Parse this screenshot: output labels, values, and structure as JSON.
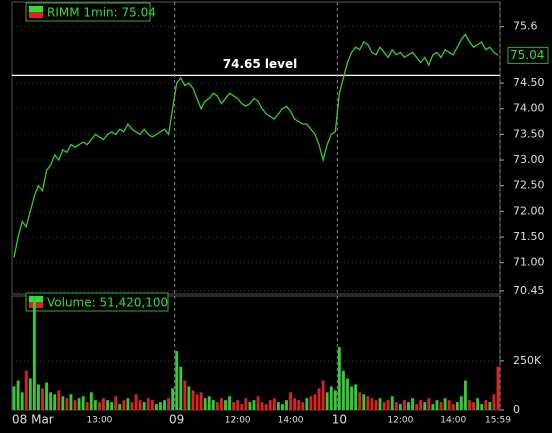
{
  "chart_data": [
    {
      "type": "price-line",
      "legend": "RIMM 1min: 75.04",
      "color": "#33cc33",
      "last_price": {
        "value": 75.04,
        "label": "75.04"
      },
      "level": {
        "value": 74.65,
        "label": "74.65 level"
      },
      "categories": [
        "08 Mar",
        null,
        null,
        null,
        null,
        null,
        null,
        null,
        null,
        null,
        null,
        null,
        null,
        null,
        null,
        null,
        null,
        null,
        null,
        null,
        null,
        "13:00",
        null,
        null,
        null,
        null,
        null,
        null,
        null,
        null,
        null,
        null,
        null,
        null,
        null,
        null,
        null,
        null,
        null,
        null,
        "09",
        null,
        null,
        null,
        null,
        null,
        null,
        null,
        null,
        null,
        null,
        null,
        null,
        null,
        null,
        "12:00",
        null,
        null,
        null,
        null,
        null,
        null,
        null,
        null,
        null,
        null,
        null,
        null,
        "14:00",
        null,
        null,
        null,
        null,
        null,
        null,
        null,
        null,
        null,
        null,
        null,
        "10",
        null,
        null,
        null,
        null,
        null,
        null,
        null,
        null,
        null,
        null,
        null,
        null,
        null,
        null,
        "12:00",
        null,
        null,
        null,
        null,
        null,
        null,
        null,
        null,
        null,
        null,
        null,
        null,
        "14:00",
        null,
        null,
        null,
        null,
        null,
        null,
        null,
        null,
        null,
        null,
        "15:59"
      ],
      "values": [
        71.1,
        71.5,
        71.8,
        71.7,
        72.0,
        72.3,
        72.5,
        72.4,
        72.8,
        72.9,
        73.1,
        73.0,
        73.2,
        73.15,
        73.3,
        73.25,
        73.3,
        73.35,
        73.3,
        73.4,
        73.5,
        73.45,
        73.4,
        73.5,
        73.55,
        73.5,
        73.6,
        73.55,
        73.7,
        73.6,
        73.55,
        73.5,
        73.6,
        73.5,
        73.45,
        73.5,
        73.55,
        73.6,
        73.5,
        74.0,
        74.5,
        74.6,
        74.45,
        74.5,
        74.4,
        74.2,
        74.0,
        74.15,
        74.2,
        74.3,
        74.25,
        74.1,
        74.2,
        74.3,
        74.25,
        74.2,
        74.1,
        74.05,
        74.1,
        74.2,
        74.15,
        74.0,
        73.9,
        73.85,
        73.8,
        73.9,
        74.0,
        74.05,
        73.95,
        73.8,
        73.75,
        73.7,
        73.7,
        73.6,
        73.5,
        73.3,
        73.0,
        73.3,
        73.5,
        73.55,
        74.3,
        74.6,
        74.9,
        75.1,
        75.2,
        75.15,
        75.3,
        75.25,
        75.1,
        75.05,
        75.2,
        75.1,
        75.0,
        75.15,
        75.05,
        75.1,
        75.0,
        75.05,
        75.1,
        75.0,
        74.9,
        75.0,
        74.85,
        75.05,
        75.1,
        75.0,
        75.15,
        75.1,
        75.05,
        75.2,
        75.35,
        75.45,
        75.3,
        75.2,
        75.25,
        75.3,
        75.15,
        75.2,
        75.1,
        75.04
      ],
      "ylim": [
        70.35,
        76.08
      ],
      "yticks": [
        75.6,
        {
          "value": 74.5,
          "label": "74.50"
        },
        {
          "value": 74.0,
          "label": "74.00"
        },
        {
          "value": 73.5,
          "label": "73.50"
        },
        {
          "value": 73.0,
          "label": "73.00"
        },
        {
          "value": 72.5,
          "label": "72.50"
        },
        {
          "value": 72.0,
          "label": "72.00"
        },
        {
          "value": 71.5,
          "label": "71.50"
        },
        {
          "value": 71.0,
          "label": "71.00"
        },
        70.45
      ]
    },
    {
      "type": "volume",
      "legend": "Volume: 51,420,100",
      "up_color": "#33cc33",
      "down_color": "#dd2222",
      "values": [
        120000,
        150000,
        90000,
        200000,
        160000,
        580000,
        130000,
        110000,
        140000,
        90000,
        80000,
        100000,
        70000,
        60000,
        80000,
        50000,
        60000,
        70000,
        40000,
        90000,
        50000,
        40000,
        60000,
        50000,
        40000,
        70000,
        30000,
        50000,
        60000,
        40000,
        80000,
        50000,
        40000,
        60000,
        50000,
        30000,
        40000,
        50000,
        60000,
        110000,
        300000,
        220000,
        150000,
        120000,
        100000,
        80000,
        90000,
        60000,
        70000,
        50000,
        40000,
        60000,
        50000,
        70000,
        40000,
        50000,
        30000,
        60000,
        40000,
        50000,
        70000,
        40000,
        30000,
        50000,
        60000,
        40000,
        30000,
        50000,
        90000,
        60000,
        50000,
        40000,
        60000,
        70000,
        80000,
        110000,
        150000,
        90000,
        120000,
        100000,
        320000,
        200000,
        160000,
        120000,
        130000,
        90000,
        80000,
        70000,
        60000,
        50000,
        60000,
        40000,
        50000,
        70000,
        40000,
        30000,
        50000,
        40000,
        60000,
        30000,
        50000,
        40000,
        60000,
        30000,
        50000,
        40000,
        60000,
        50000,
        30000,
        40000,
        70000,
        150000,
        50000,
        40000,
        60000,
        30000,
        50000,
        40000,
        80000,
        220000
      ],
      "ylim": [
        0,
        580000
      ],
      "yticks": [
        0,
        {
          "value": 250000,
          "label": "250K"
        }
      ]
    }
  ]
}
